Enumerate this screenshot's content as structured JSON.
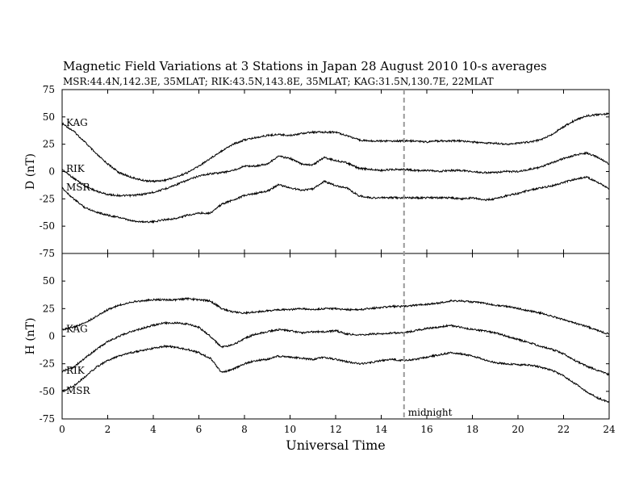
{
  "title": "Magnetic Field Variations at 3 Stations in Japan        28  August  2010      10-s averages",
  "subtitle": "MSR:44.4N,142.3E, 35MLAT;  RIK:43.5N,143.8E, 35MLAT;  KAG:31.5N,130.7E, 22MLAT",
  "chart_data": {
    "type": "line",
    "xlabel": "Universal Time",
    "xlim": [
      0,
      24
    ],
    "x_ticks": [
      "0",
      "2",
      "4",
      "6",
      "8",
      "10",
      "12",
      "14",
      "16",
      "18",
      "20",
      "22",
      "24"
    ],
    "annotation": {
      "x": 15,
      "label": "midnight"
    },
    "panels": [
      {
        "ylabel": "D (nT)",
        "ylim": [
          -75,
          75
        ],
        "y_ticks": [
          "75",
          "50",
          "25",
          "0",
          "-25",
          "-50",
          "-75"
        ],
        "series": [
          {
            "name": "KAG",
            "x": [
              0,
              0.5,
              1,
              1.5,
              2,
              2.5,
              3,
              3.5,
              4,
              4.5,
              5,
              5.5,
              6,
              6.5,
              7,
              7.5,
              8,
              8.5,
              9,
              9.5,
              10,
              10.5,
              11,
              11.5,
              12,
              12.5,
              13,
              13.5,
              14,
              14.5,
              15,
              15.5,
              16,
              16.5,
              17,
              17.5,
              18,
              18.5,
              19,
              19.5,
              20,
              20.5,
              21,
              21.5,
              22,
              22.5,
              23,
              23.5,
              24
            ],
            "y": [
              44,
              37,
              27,
              16,
              7,
              -1,
              -5,
              -8,
              -9,
              -8,
              -5,
              -1,
              5,
              12,
              19,
              25,
              29,
              31,
              33,
              34,
              33,
              35,
              36,
              36,
              36,
              33,
              29,
              28,
              28,
              28,
              28,
              28,
              27,
              28,
              28,
              28,
              27,
              26,
              26,
              25,
              26,
              27,
              29,
              34,
              41,
              47,
              51,
              52,
              53
            ]
          },
          {
            "name": "RIK",
            "x": [
              0,
              0.5,
              1,
              1.5,
              2,
              2.5,
              3,
              3.5,
              4,
              4.5,
              5,
              5.5,
              6,
              6.5,
              7,
              7.5,
              8,
              8.5,
              9,
              9.5,
              10,
              10.5,
              11,
              11.5,
              12,
              12.5,
              13,
              13.5,
              14,
              14.5,
              15,
              15.5,
              16,
              16.5,
              17,
              17.5,
              18,
              18.5,
              19,
              19.5,
              20,
              20.5,
              21,
              21.5,
              22,
              22.5,
              23,
              23.5,
              24
            ],
            "y": [
              2,
              -6,
              -13,
              -18,
              -21,
              -22,
              -22,
              -21,
              -19,
              -16,
              -12,
              -8,
              -4,
              -2,
              -1,
              1,
              5,
              5,
              7,
              14,
              12,
              7,
              6,
              13,
              10,
              8,
              3,
              2,
              1,
              2,
              2,
              1,
              1,
              0,
              1,
              1,
              0,
              -1,
              -1,
              0,
              0,
              2,
              4,
              8,
              12,
              15,
              17,
              13,
              7
            ]
          },
          {
            "name": "MSR",
            "x": [
              0,
              0.5,
              1,
              1.5,
              2,
              2.5,
              3,
              3.5,
              4,
              4.5,
              5,
              5.5,
              6,
              6.5,
              7,
              7.5,
              8,
              8.5,
              9,
              9.5,
              10,
              10.5,
              11,
              11.5,
              12,
              12.5,
              13,
              13.5,
              14,
              14.5,
              15,
              15.5,
              16,
              16.5,
              17,
              17.5,
              18,
              18.5,
              19,
              19.5,
              20,
              20.5,
              21,
              21.5,
              22,
              22.5,
              23,
              23.5,
              24
            ],
            "y": [
              -15,
              -25,
              -33,
              -37,
              -40,
              -42,
              -45,
              -46,
              -46,
              -44,
              -43,
              -40,
              -38,
              -38,
              -30,
              -26,
              -22,
              -20,
              -18,
              -12,
              -15,
              -17,
              -16,
              -9,
              -13,
              -15,
              -22,
              -24,
              -24,
              -24,
              -24,
              -24,
              -24,
              -24,
              -24,
              -25,
              -24,
              -26,
              -25,
              -22,
              -20,
              -17,
              -15,
              -13,
              -10,
              -7,
              -5,
              -10,
              -16
            ]
          }
        ]
      },
      {
        "ylabel": "H (nT)",
        "ylim": [
          -75,
          75
        ],
        "y_ticks": [
          "75",
          "50",
          "25",
          "0",
          "-25",
          "-50",
          "-75"
        ],
        "series": [
          {
            "name": "KAG",
            "x": [
              0,
              0.5,
              1,
              1.5,
              2,
              2.5,
              3,
              3.5,
              4,
              4.5,
              5,
              5.5,
              6,
              6.5,
              7,
              7.5,
              8,
              8.5,
              9,
              9.5,
              10,
              10.5,
              11,
              11.5,
              12,
              12.5,
              13,
              13.5,
              14,
              14.5,
              15,
              15.5,
              16,
              16.5,
              17,
              17.5,
              18,
              18.5,
              19,
              19.5,
              20,
              20.5,
              21,
              21.5,
              22,
              22.5,
              23,
              23.5,
              24
            ],
            "y": [
              6,
              8,
              12,
              18,
              24,
              28,
              31,
              32,
              33,
              33,
              33,
              34,
              33,
              32,
              25,
              22,
              21,
              22,
              23,
              24,
              24,
              25,
              24,
              25,
              25,
              24,
              24,
              25,
              26,
              27,
              27,
              28,
              29,
              30,
              32,
              32,
              31,
              30,
              28,
              27,
              25,
              23,
              21,
              18,
              15,
              12,
              9,
              5,
              2
            ]
          },
          {
            "name": "RIK",
            "x": [
              0,
              0.5,
              1,
              1.5,
              2,
              2.5,
              3,
              3.5,
              4,
              4.5,
              5,
              5.5,
              6,
              6.5,
              7,
              7.5,
              8,
              8.5,
              9,
              9.5,
              10,
              10.5,
              11,
              11.5,
              12,
              12.5,
              13,
              13.5,
              14,
              14.5,
              15,
              15.5,
              16,
              16.5,
              17,
              17.5,
              18,
              18.5,
              19,
              19.5,
              20,
              20.5,
              21,
              21.5,
              22,
              22.5,
              23,
              23.5,
              24
            ],
            "y": [
              -32,
              -28,
              -20,
              -12,
              -5,
              0,
              4,
              7,
              10,
              12,
              12,
              11,
              8,
              0,
              -10,
              -8,
              -2,
              2,
              4,
              6,
              5,
              3,
              4,
              4,
              5,
              2,
              1,
              2,
              2,
              3,
              3,
              5,
              7,
              8,
              10,
              8,
              6,
              5,
              3,
              0,
              -3,
              -6,
              -9,
              -12,
              -16,
              -22,
              -27,
              -31,
              -35
            ]
          },
          {
            "name": "MSR",
            "x": [
              0,
              0.5,
              1,
              1.5,
              2,
              2.5,
              3,
              3.5,
              4,
              4.5,
              5,
              5.5,
              6,
              6.5,
              7,
              7.5,
              8,
              8.5,
              9,
              9.5,
              10,
              10.5,
              11,
              11.5,
              12,
              12.5,
              13,
              13.5,
              14,
              14.5,
              15,
              15.5,
              16,
              16.5,
              17,
              17.5,
              18,
              18.5,
              19,
              19.5,
              20,
              20.5,
              21,
              21.5,
              22,
              22.5,
              23,
              23.5,
              24
            ],
            "y": [
              -50,
              -45,
              -37,
              -28,
              -22,
              -18,
              -15,
              -13,
              -11,
              -9,
              -10,
              -12,
              -15,
              -20,
              -33,
              -30,
              -25,
              -22,
              -21,
              -18,
              -19,
              -20,
              -21,
              -19,
              -21,
              -23,
              -25,
              -24,
              -22,
              -21,
              -22,
              -21,
              -19,
              -17,
              -15,
              -16,
              -18,
              -21,
              -24,
              -25,
              -26,
              -26,
              -28,
              -31,
              -36,
              -43,
              -50,
              -56,
              -60
            ]
          }
        ]
      }
    ]
  }
}
